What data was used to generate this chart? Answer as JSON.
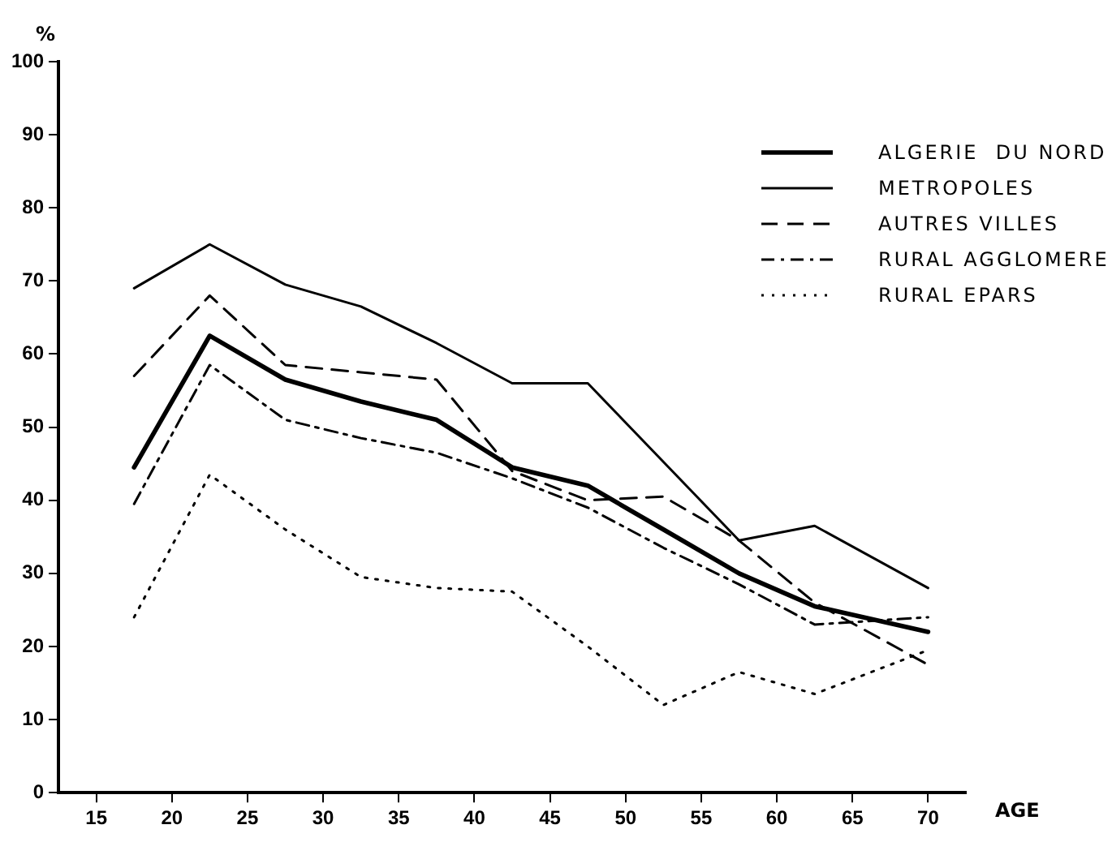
{
  "chart_data": {
    "type": "line",
    "xlabel": "AGE",
    "ylabel": "%",
    "xlim": [
      12.5,
      72.5
    ],
    "xticks": [
      15,
      20,
      25,
      30,
      35,
      40,
      45,
      50,
      55,
      60,
      65,
      70
    ],
    "ylim": [
      0,
      100
    ],
    "yticks": [
      0,
      10,
      20,
      30,
      40,
      50,
      60,
      70,
      80,
      90,
      100
    ],
    "grid": false,
    "legend": "top right",
    "marker": "none",
    "series": [
      {
        "name": "ALGERIE  DU NORD",
        "color": "#000000",
        "line_style": "solid",
        "x": [
          17.5,
          22.5,
          27.5,
          32.5,
          37.5,
          42.5,
          47.5,
          52.5,
          57.5,
          62.5,
          70
        ],
        "values": [
          44.5,
          62.5,
          56.5,
          53.5,
          51,
          44.5,
          42,
          36,
          30,
          25.5,
          22
        ]
      },
      {
        "name": "METROPOLES",
        "color": "#000000",
        "line_style": "solid",
        "x": [
          17.5,
          22.5,
          27.5,
          32.5,
          37.5,
          42.5,
          47.5,
          57.5,
          62.5,
          70
        ],
        "values": [
          69,
          75,
          69.5,
          66.5,
          61.5,
          56,
          56,
          34.5,
          36.5,
          28
        ]
      },
      {
        "name": "AUTRES VILLES",
        "color": "#000000",
        "line_style": "dashed",
        "x": [
          17.5,
          22.5,
          27.5,
          32.5,
          37.5,
          42.5,
          47.5,
          52.5,
          57.5,
          62.5,
          70
        ],
        "values": [
          57,
          68,
          58.5,
          57.5,
          56.5,
          44,
          40,
          40.5,
          34.5,
          26,
          17.5
        ]
      },
      {
        "name": "RURAL AGGLOMERE",
        "color": "#000000",
        "line_style": "dashdot",
        "x": [
          17.5,
          22.5,
          27.5,
          32.5,
          37.5,
          42.5,
          47.5,
          52.5,
          57.5,
          62.5,
          70
        ],
        "values": [
          39.5,
          58.5,
          51,
          48.5,
          46.5,
          43,
          39,
          33.5,
          28.5,
          23,
          24
        ]
      },
      {
        "name": "RURAL EPARS",
        "color": "#000000",
        "line_style": "dotted",
        "x": [
          17.5,
          22.5,
          27.5,
          32.5,
          37.5,
          42.5,
          47.5,
          52.5,
          57.5,
          62.5,
          70
        ],
        "values": [
          24,
          43.5,
          36,
          29.5,
          28,
          27.5,
          20,
          12,
          16.5,
          13.5,
          19.5
        ]
      }
    ]
  }
}
